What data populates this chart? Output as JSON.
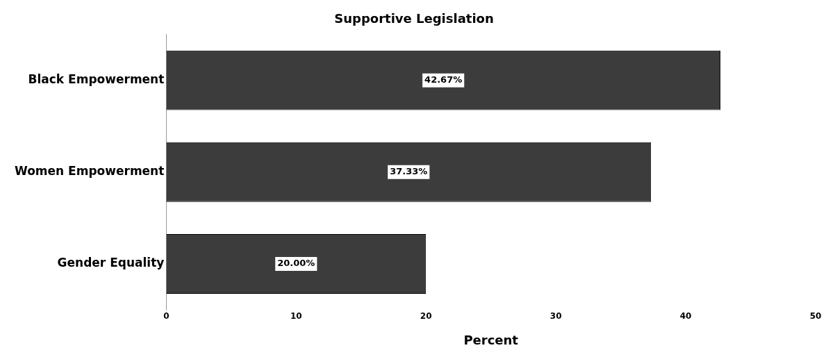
{
  "chart_data": {
    "type": "bar",
    "orientation": "horizontal",
    "title": "Supportive Legislation",
    "xlabel": "Percent",
    "categories": [
      "Black Empowerment",
      "Women Empowerment",
      "Gender Equality"
    ],
    "values": [
      42.67,
      37.33,
      20.0
    ],
    "value_labels": [
      "42.67%",
      "37.33%",
      "20.00%"
    ],
    "color": "#3c3c3c",
    "xlim": [
      0,
      50
    ],
    "xticks": [
      0,
      10,
      20,
      30,
      40,
      50
    ],
    "grid": false,
    "legend": false
  }
}
